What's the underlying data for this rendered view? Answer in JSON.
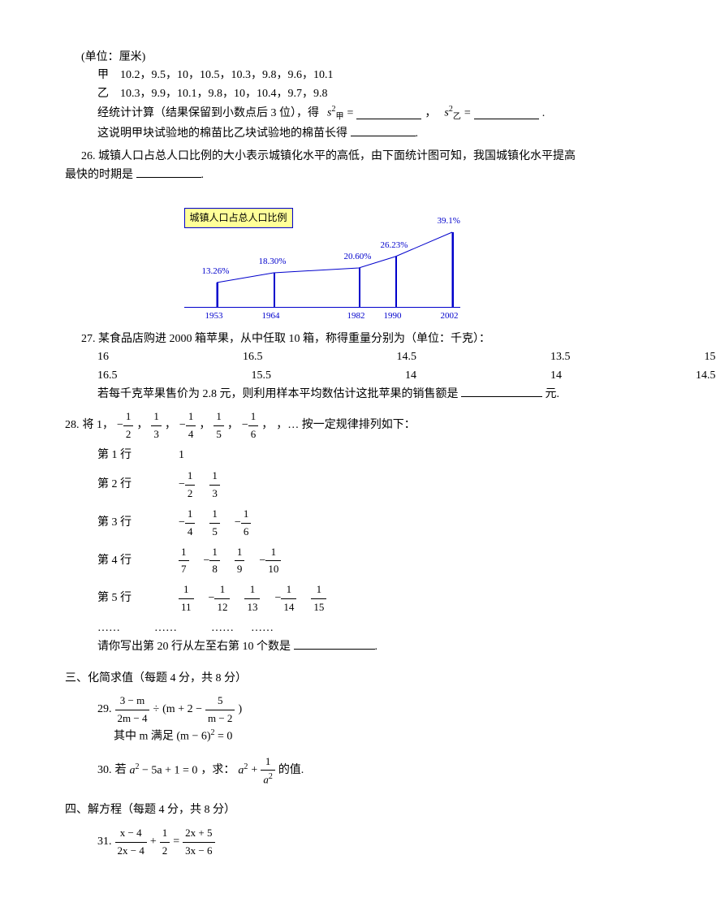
{
  "intro": {
    "unit": "(单位：厘米)",
    "jia_label": "甲",
    "jia_values": "10.2，9.5，10，10.5，10.3，9.8，9.6，10.1",
    "yi_label": "乙",
    "yi_values": "10.3，9.9，10.1，9.8，10，10.4，9.7，9.8",
    "calc_text": "经统计计算（结果保留到小数点后 3 位），得",
    "s_jia": "s",
    "s_jia_sub": "甲",
    "s_yi": "s",
    "s_yi_sub": "乙",
    "eq": "=",
    "comma": "，",
    "period": ".",
    "explain": "这说明甲块试验地的棉苗比乙块试验地的棉苗长得"
  },
  "q26": {
    "num": "26.",
    "text1": "城镇人口占总人口比例的大小表示城镇化水平的高低，由下面统计图可知，我国城镇化水平提高最快的时期是",
    "chart": {
      "title": "城镇人口占总人口比例",
      "years": [
        "1953",
        "1964",
        "1982",
        "1990",
        "2002"
      ],
      "positions": [
        40,
        110,
        215,
        260,
        330
      ],
      "values": [
        "13.26%",
        "18.30%",
        "20.60%",
        "26.23%",
        "39.1%"
      ],
      "heights": [
        30,
        42,
        48,
        62,
        92
      ],
      "bar_color": "#0000cc",
      "title_bg": "#ffff99",
      "title_border": "#0000cc"
    }
  },
  "q27": {
    "num": "27.",
    "text1": "某食品店购进 2000 箱苹果，从中任取 10 箱，称得重量分别为（单位：千克）：",
    "row1": "16      16.5      14.5      13.5      15",
    "row2": "16.5      15.5      14      14      14.5",
    "text2": "若每千克苹果售价为 2.8 元，则利用样本平均数估计这批苹果的销售额是",
    "unit": "元."
  },
  "q28": {
    "num": "28.",
    "text1": "将 1，",
    "seq_tail": "，…   按一定规律排列如下：",
    "rows": [
      {
        "label": "第 1 行",
        "items": [
          "1"
        ]
      },
      {
        "label": "第 2 行",
        "items": [
          {
            "n": "1",
            "d": "2",
            "neg": true
          },
          {
            "n": "1",
            "d": "3"
          }
        ]
      },
      {
        "label": "第 3 行",
        "items": [
          {
            "n": "1",
            "d": "4",
            "neg": true
          },
          {
            "n": "1",
            "d": "5"
          },
          {
            "n": "1",
            "d": "6",
            "neg": true
          }
        ]
      },
      {
        "label": "第 4 行",
        "items": [
          {
            "n": "1",
            "d": "7"
          },
          {
            "n": "1",
            "d": "8",
            "neg": true
          },
          {
            "n": "1",
            "d": "9"
          },
          {
            "n": "1",
            "d": "10",
            "neg": true
          }
        ]
      },
      {
        "label": "第 5 行",
        "items": [
          {
            "n": "1",
            "d": "11"
          },
          {
            "n": "1",
            "d": "12",
            "neg": true
          },
          {
            "n": "1",
            "d": "13"
          },
          {
            "n": "1",
            "d": "14",
            "neg": true
          },
          {
            "n": "1",
            "d": "15"
          }
        ]
      }
    ],
    "dots": "……            ……            ……      ……",
    "ask": "请你写出第 20 行从左至右第 10 个数是",
    "seq": [
      {
        "n": "1",
        "d": "2",
        "neg": true
      },
      {
        "n": "1",
        "d": "3"
      },
      {
        "n": "1",
        "d": "4",
        "neg": true
      },
      {
        "n": "1",
        "d": "5"
      },
      {
        "n": "1",
        "d": "6",
        "neg": true
      }
    ]
  },
  "sec3": {
    "title": "三、化简求值（每题 4 分，共 8 分）",
    "q29": {
      "num": "29.",
      "expr": {
        "f1_num": "3 − m",
        "f1_den": "2m − 4",
        "div": "÷",
        "lp": "(m + 2 −",
        "f2_num": "5",
        "f2_den": "m − 2",
        "rp": ")"
      },
      "where": "其中 m 满足",
      "cond": "(m − 6)",
      "cond_sup": "2",
      "cond_tail": " = 0"
    },
    "q30": {
      "num": "30.",
      "pre": "若",
      "eq": "a",
      "eq_sup": "2",
      "eq_tail": " − 5a + 1 = 0",
      "ask": "，求：",
      "expr": {
        "t1": "a",
        "t1_sup": "2",
        "plus": " + ",
        "f_num": "1",
        "f_den": "a",
        "f_den_sup": "2"
      },
      "tail": " 的值."
    }
  },
  "sec4": {
    "title": "四、解方程（每题 4 分，共 8 分）",
    "q31": {
      "num": "31.",
      "f1_num": "x − 4",
      "f1_den": "2x − 4",
      "plus": " + ",
      "f2_num": "1",
      "f2_den": "2",
      "eq": " = ",
      "f3_num": "2x + 5",
      "f3_den": "3x − 6"
    }
  }
}
